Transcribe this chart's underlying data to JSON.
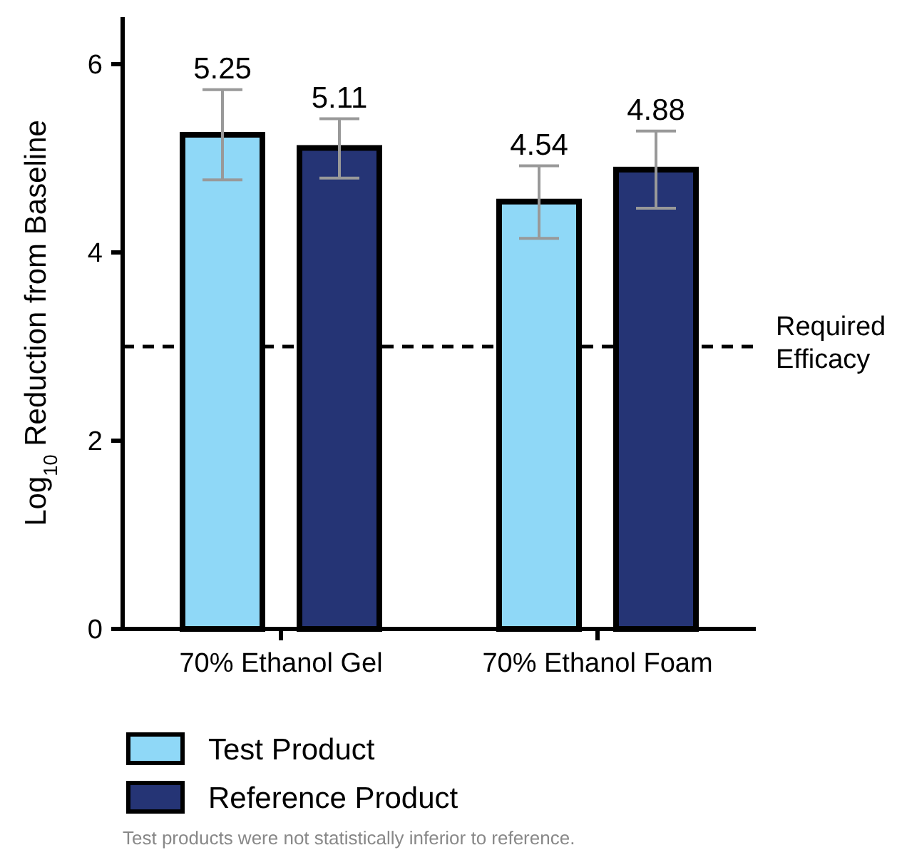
{
  "chart_data": {
    "type": "bar",
    "ylabel": "Log$_{10}$ Reduction from Baseline",
    "categories": [
      "70% Ethanol Gel",
      "70% Ethanol Foam"
    ],
    "series": [
      {
        "name": "Test Product",
        "color": "#8fd8f7",
        "values": [
          5.25,
          4.54
        ],
        "errors": [
          [
            4.77,
            5.73
          ],
          [
            4.15,
            4.92
          ]
        ]
      },
      {
        "name": "Reference Product",
        "color": "#253475",
        "values": [
          5.11,
          4.88
        ],
        "errors": [
          [
            4.79,
            5.42
          ],
          [
            4.47,
            5.29
          ]
        ]
      }
    ],
    "ylim": [
      0,
      6.5
    ],
    "yticks": [
      0,
      2,
      4,
      6
    ],
    "data_labels": true,
    "legend": "bottom left",
    "ref_lines": [
      {
        "axis": "y",
        "value": 3,
        "label": "Required Efficacy",
        "line_style": "dashed"
      }
    ],
    "annotations": [
      "Test products were not statistically inferior to reference."
    ]
  }
}
